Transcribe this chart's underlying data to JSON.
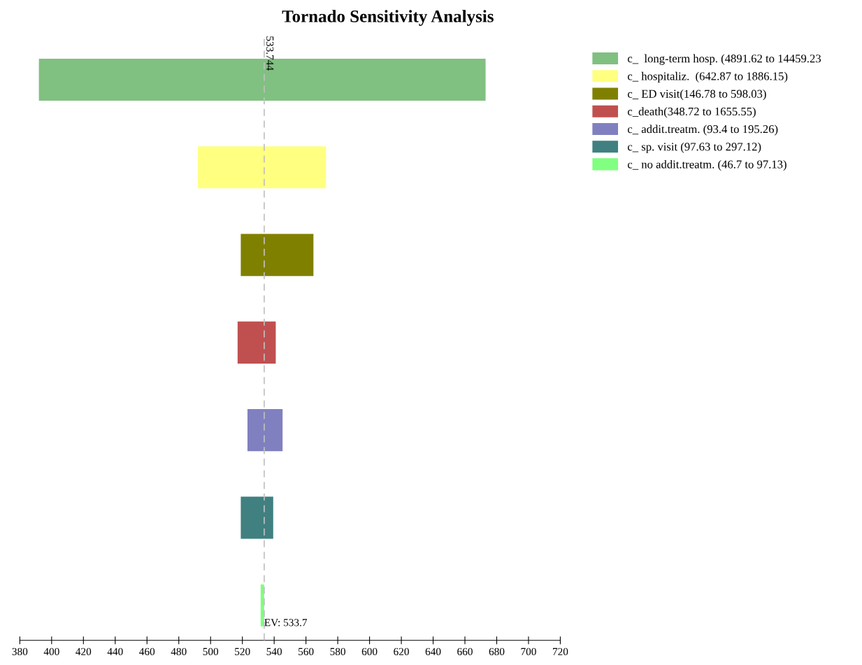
{
  "chart_data": {
    "type": "bar",
    "orientation": "horizontal",
    "title": "Tornado Sensitivity Analysis",
    "categories": [
      null,
      null,
      null,
      null,
      null,
      null,
      null
    ],
    "series": [
      {
        "name": "c_  long-term hosp. (4891.62 to 14459.23",
        "color": "#80c080",
        "base": [
          392,
          null,
          null,
          null,
          null,
          null,
          null
        ],
        "values": [
          281,
          null,
          null,
          null,
          null,
          null,
          null
        ]
      },
      {
        "name": "c_ hospitaliz.  (642.87 to 1886.15)",
        "color": "#ffff80",
        "base": [
          null,
          492,
          null,
          null,
          null,
          null,
          null
        ],
        "values": [
          null,
          80.6,
          null,
          null,
          null,
          null,
          null
        ]
      },
      {
        "name": "c_ ED visit(146.78 to 598.03)",
        "color": "#808000",
        "base": [
          null,
          null,
          519,
          null,
          null,
          null,
          null
        ],
        "values": [
          null,
          null,
          45.7,
          null,
          null,
          null,
          null
        ]
      },
      {
        "name": "c_death(348.72 to 1655.55)",
        "color": "#c05050",
        "base": [
          null,
          null,
          null,
          517,
          null,
          null,
          null
        ],
        "values": [
          null,
          null,
          null,
          24,
          null,
          null,
          null
        ]
      },
      {
        "name": "c_ addit.treatm. (93.4 to 195.26)",
        "color": "#8080c0",
        "base": [
          null,
          null,
          null,
          null,
          523.2,
          null,
          null
        ],
        "values": [
          null,
          null,
          null,
          null,
          22.1,
          null,
          null
        ]
      },
      {
        "name": "c_ sp. visit (97.63 to 297.12)",
        "color": "#408080",
        "base": [
          null,
          null,
          null,
          null,
          null,
          519,
          null
        ],
        "values": [
          null,
          null,
          null,
          null,
          null,
          20.4,
          null
        ]
      },
      {
        "name": "c_ no addit.treatm. (46.7 to 97.13)",
        "color": "#80ff80",
        "base": [
          null,
          null,
          null,
          null,
          null,
          null,
          531.5
        ],
        "values": [
          null,
          null,
          null,
          null,
          null,
          null,
          2.2
        ]
      }
    ],
    "xlim": [
      380,
      720
    ],
    "xticks": [
      380,
      400,
      420,
      440,
      460,
      480,
      500,
      520,
      540,
      560,
      580,
      600,
      620,
      640,
      660,
      680,
      700,
      720
    ],
    "ref_lines": [
      {
        "axis": "x",
        "value": 533.744,
        "label": "533.744",
        "color": "#c0c0c0",
        "line_style": "dashed"
      }
    ],
    "annotations": [
      {
        "text": "EV: 533.7",
        "x": 533.7
      }
    ],
    "tick_labels": "x",
    "grid": false,
    "legend": "top right"
  }
}
